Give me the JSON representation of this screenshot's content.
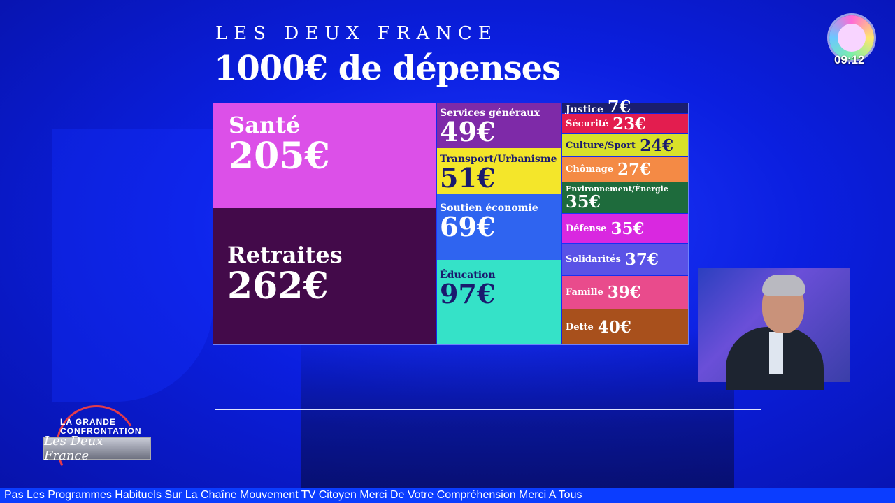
{
  "header": {
    "kicker": "LES DEUX FRANCE",
    "title": "1000€ de dépenses"
  },
  "channel": {
    "clock": "09:12"
  },
  "treemap": {
    "tiles": [
      {
        "label": "Santé",
        "value": "205€",
        "color": "#dc50e8"
      },
      {
        "label": "Retraites",
        "value": "262€",
        "color": "#430a4a"
      },
      {
        "label": "Services généraux",
        "value": "49€",
        "color": "#7e2aa8"
      },
      {
        "label": "Transport/Urbanisme",
        "value": "51€",
        "color": "#f4e62a"
      },
      {
        "label": "Soutien économie",
        "value": "69€",
        "color": "#2f64f0"
      },
      {
        "label": "Éducation",
        "value": "97€",
        "color": "#35e2c8"
      },
      {
        "label": "Justice",
        "value": "7€",
        "color": "#1a1e6e"
      },
      {
        "label": "Sécurité",
        "value": "23€",
        "color": "#e31d4f"
      },
      {
        "label": "Culture/Sport",
        "value": "24€",
        "color": "#d9e12a"
      },
      {
        "label": "Chômage",
        "value": "27€",
        "color": "#f48a45"
      },
      {
        "label": "Environnement/Énergie",
        "value": "35€",
        "color": "#1e6b3c"
      },
      {
        "label": "Défense",
        "value": "35€",
        "color": "#d928e0"
      },
      {
        "label": "Solidarités",
        "value": "37€",
        "color": "#5a52e6"
      },
      {
        "label": "Famille",
        "value": "39€",
        "color": "#e94b8c"
      },
      {
        "label": "Dette",
        "value": "40€",
        "color": "#a8501c"
      }
    ]
  },
  "show": {
    "top": "LA GRANDE CONFRONTATION",
    "name": "Les Deux France"
  },
  "ticker": {
    "text": "Pas Les Programmes Habituels Sur La Chaîne Mouvement TV Citoyen Merci De Votre Compréhension Merci A Tous"
  }
}
